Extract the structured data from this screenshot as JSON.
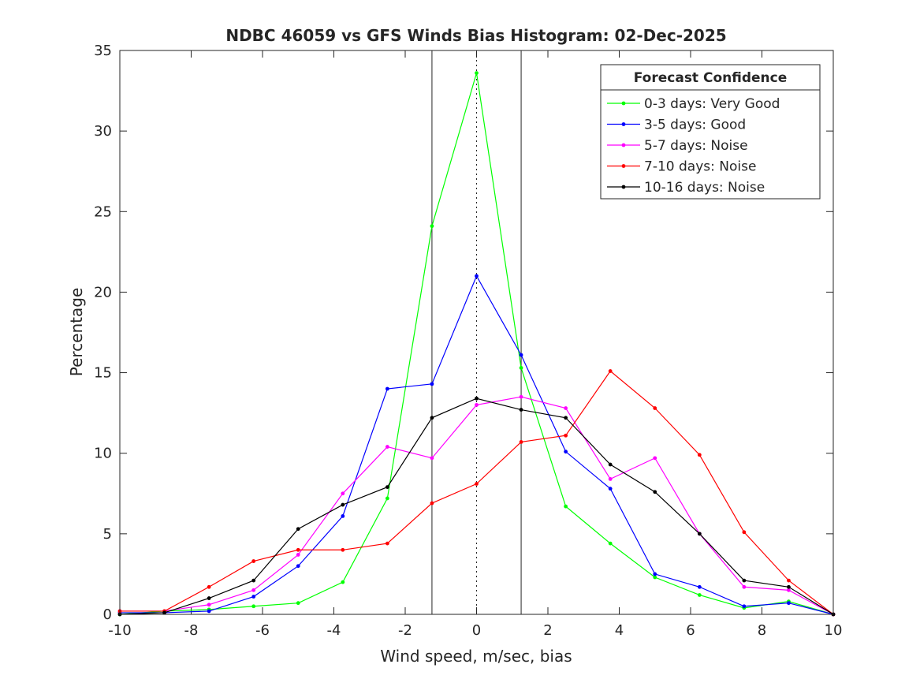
{
  "chart_data": {
    "type": "line",
    "title": "NDBC 46059 vs GFS Winds Bias Histogram: 02-Dec-2025",
    "xlabel": "Wind speed, m/sec, bias",
    "ylabel": "Percentage",
    "xlim": [
      -10,
      10
    ],
    "ylim": [
      0,
      35
    ],
    "xticks": [
      -10,
      -8,
      -6,
      -4,
      -2,
      0,
      2,
      4,
      6,
      8,
      10
    ],
    "yticks": [
      0,
      5,
      10,
      15,
      20,
      25,
      30,
      35
    ],
    "grid": false,
    "reference_lines": {
      "solid": [
        -1.25,
        1.25
      ],
      "dotted": [
        0
      ]
    },
    "legend": {
      "title": "Forecast Confidence",
      "placement": "top-right"
    },
    "x": [
      -10,
      -8.75,
      -7.5,
      -6.25,
      -5,
      -3.75,
      -2.5,
      -1.25,
      0,
      1.25,
      2.5,
      3.75,
      5,
      6.25,
      7.5,
      8.75,
      10
    ],
    "series": [
      {
        "name": "0-3 days: Very Good",
        "color": "#00ff00",
        "values": [
          0,
          0.2,
          0.3,
          0.5,
          0.7,
          2.0,
          7.2,
          24.1,
          33.6,
          15.3,
          6.7,
          4.4,
          2.3,
          1.2,
          0.4,
          0.8,
          0
        ]
      },
      {
        "name": "3-5 days: Good",
        "color": "#0000ff",
        "values": [
          0.1,
          0.1,
          0.2,
          1.1,
          3.0,
          6.1,
          14.0,
          14.3,
          21.0,
          16.1,
          10.1,
          7.8,
          2.5,
          1.7,
          0.5,
          0.7,
          0
        ]
      },
      {
        "name": "5-7 days: Noise",
        "color": "#ff00ff",
        "values": [
          0.2,
          0.2,
          0.6,
          1.5,
          3.7,
          7.5,
          10.4,
          9.7,
          13.0,
          13.5,
          12.8,
          8.4,
          9.7,
          5.0,
          1.7,
          1.5,
          0
        ]
      },
      {
        "name": "7-10 days: Noise",
        "color": "#ff0000",
        "values": [
          0.2,
          0.2,
          1.7,
          3.3,
          4.0,
          4.0,
          4.4,
          6.9,
          8.1,
          10.7,
          11.1,
          15.1,
          12.8,
          9.9,
          5.1,
          2.1,
          0
        ]
      },
      {
        "name": "10-16 days: Noise",
        "color": "#000000",
        "values": [
          0,
          0.1,
          1.0,
          2.1,
          5.3,
          6.8,
          7.9,
          12.2,
          13.4,
          12.7,
          12.2,
          9.3,
          7.6,
          5.0,
          2.1,
          1.7,
          0
        ]
      }
    ]
  }
}
